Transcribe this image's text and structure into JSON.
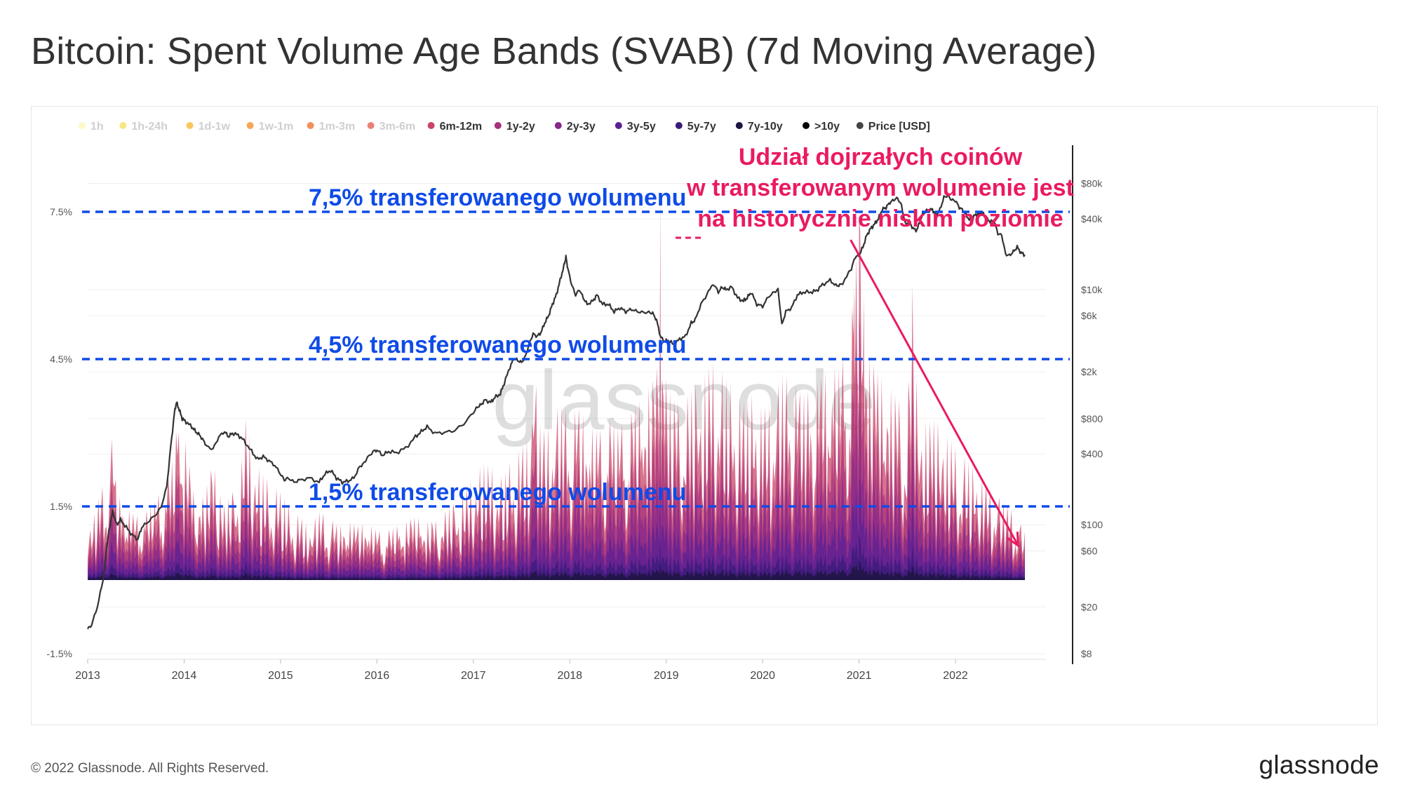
{
  "page": {
    "title": "Bitcoin: Spent Volume Age Bands (SVAB) (7d Moving Average)",
    "copyright": "© 2022 Glassnode. All Rights Reserved.",
    "logo": "glassnode",
    "watermark": "glassnode"
  },
  "colors": {
    "band_1h": "#fef7b6",
    "band_1h_24h": "#f7dc5a",
    "band_1d_1w": "#f9b32a",
    "band_1w_1m": "#f48a1a",
    "band_1m_3m": "#ec6a23",
    "band_3m_6m": "#e0584c",
    "band_6m_12m": "#c94568",
    "band_1y_2y": "#a8327a",
    "band_2y_3y": "#86288a",
    "band_3y_5y": "#5b2094",
    "band_5y_7y": "#3a1a7a",
    "band_7y_10y": "#1d1440",
    "band_10y": "#050505",
    "price": "#333333",
    "annotation_blue": "#0f4be8",
    "annotation_red": "#ea1b60"
  },
  "chart_data": {
    "type": "area",
    "title": "Bitcoin: Spent Volume Age Bands (SVAB) (7d Moving Average)",
    "legend_position": "top-left",
    "grid": true,
    "legend": [
      {
        "label": "1h",
        "color": "#fef7b6",
        "active": false
      },
      {
        "label": "1h-24h",
        "color": "#f7dc5a",
        "active": false
      },
      {
        "label": "1d-1w",
        "color": "#f9b32a",
        "active": false
      },
      {
        "label": "1w-1m",
        "color": "#f48a1a",
        "active": false
      },
      {
        "label": "1m-3m",
        "color": "#ec6a23",
        "active": false
      },
      {
        "label": "3m-6m",
        "color": "#e0584c",
        "active": false
      },
      {
        "label": "6m-12m",
        "color": "#c94568",
        "active": true
      },
      {
        "label": "1y-2y",
        "color": "#a8327a",
        "active": true
      },
      {
        "label": "2y-3y",
        "color": "#86288a",
        "active": true
      },
      {
        "label": "3y-5y",
        "color": "#5b2094",
        "active": true
      },
      {
        "label": "5y-7y",
        "color": "#3a1a7a",
        "active": true
      },
      {
        "label": "7y-10y",
        "color": "#1d1440",
        "active": true
      },
      {
        "label": ">10y",
        "color": "#050505",
        "active": true
      },
      {
        "label": "Price [USD]",
        "color": "#444444",
        "active": true
      }
    ],
    "x_ticks": [
      "2013",
      "2014",
      "2015",
      "2016",
      "2017",
      "2018",
      "2019",
      "2020",
      "2021",
      "2022"
    ],
    "x_range": [
      2013.0,
      2022.72
    ],
    "y_left_ticks": [
      "7.5%",
      "4.5%",
      "1.5%",
      "-1.5%"
    ],
    "y_left_tick_values": [
      7.5,
      4.5,
      1.5,
      -1.5
    ],
    "y_left_range": [
      -1.5,
      8.5
    ],
    "y_right_ticks": [
      "$80k",
      "$40k",
      "$10k",
      "$6k",
      "$2k",
      "$800",
      "$400",
      "$100",
      "$60",
      "$20",
      "$8"
    ],
    "y_right_tick_values": [
      80000,
      40000,
      10000,
      6000,
      2000,
      800,
      400,
      100,
      60,
      20,
      8
    ],
    "y_right_scale": "log",
    "y_right_range": [
      8,
      120000
    ],
    "reference_lines": [
      {
        "value": 7.5,
        "label": "7,5% transferowanego wolumenu"
      },
      {
        "value": 4.5,
        "label": "4,5% transferowanego wolumenu"
      },
      {
        "value": 1.5,
        "label": "1,5% transferowanego wolumenu"
      }
    ],
    "annotation": {
      "lines": [
        "Udział dojrzałych coinów",
        "w transferowanym wolumenie jest",
        "na historycznie niskim poziomie"
      ],
      "arrow_from": [
        2021.0,
        7.9
      ],
      "arrow_to": [
        2022.65,
        0.7
      ]
    },
    "price_series": {
      "name": "Price [USD]",
      "x": [
        2013.0,
        2013.04,
        2013.1,
        2013.16,
        2013.22,
        2013.26,
        2013.3,
        2013.34,
        2013.4,
        2013.46,
        2013.52,
        2013.56,
        2013.62,
        2013.7,
        2013.76,
        2013.82,
        2013.86,
        2013.9,
        2013.92,
        2013.95,
        2013.98,
        2014.02,
        2014.08,
        2014.12,
        2014.16,
        2014.2,
        2014.24,
        2014.3,
        2014.36,
        2014.42,
        2014.46,
        2014.5,
        2014.56,
        2014.62,
        2014.7,
        2014.76,
        2014.82,
        2014.88,
        2014.94,
        2015.0,
        2015.04,
        2015.08,
        2015.14,
        2015.2,
        2015.3,
        2015.4,
        2015.46,
        2015.52,
        2015.58,
        2015.64,
        2015.7,
        2015.76,
        2015.82,
        2015.86,
        2015.9,
        2015.96,
        2016.0,
        2016.06,
        2016.12,
        2016.2,
        2016.3,
        2016.4,
        2016.46,
        2016.52,
        2016.6,
        2016.7,
        2016.8,
        2016.9,
        2017.0,
        2017.04,
        2017.08,
        2017.12,
        2017.18,
        2017.22,
        2017.28,
        2017.32,
        2017.38,
        2017.42,
        2017.46,
        2017.5,
        2017.54,
        2017.58,
        2017.62,
        2017.66,
        2017.7,
        2017.74,
        2017.78,
        2017.82,
        2017.86,
        2017.9,
        2017.94,
        2017.96,
        2017.98,
        2018.02,
        2018.06,
        2018.1,
        2018.14,
        2018.18,
        2018.24,
        2018.28,
        2018.34,
        2018.4,
        2018.46,
        2018.52,
        2018.58,
        2018.64,
        2018.7,
        2018.76,
        2018.82,
        2018.86,
        2018.9,
        2018.94,
        2018.98,
        2019.02,
        2019.08,
        2019.14,
        2019.2,
        2019.26,
        2019.3,
        2019.36,
        2019.42,
        2019.46,
        2019.5,
        2019.54,
        2019.58,
        2019.62,
        2019.68,
        2019.74,
        2019.8,
        2019.84,
        2019.88,
        2019.94,
        2020.0,
        2020.06,
        2020.12,
        2020.16,
        2020.2,
        2020.24,
        2020.3,
        2020.36,
        2020.42,
        2020.5,
        2020.56,
        2020.62,
        2020.7,
        2020.76,
        2020.8,
        2020.84,
        2020.88,
        2020.92,
        2020.96,
        2021.0,
        2021.04,
        2021.08,
        2021.12,
        2021.16,
        2021.2,
        2021.24,
        2021.28,
        2021.32,
        2021.36,
        2021.4,
        2021.44,
        2021.48,
        2021.52,
        2021.56,
        2021.6,
        2021.64,
        2021.68,
        2021.72,
        2021.76,
        2021.8,
        2021.84,
        2021.88,
        2021.92,
        2021.96,
        2022.0,
        2022.04,
        2022.08,
        2022.12,
        2022.16,
        2022.2,
        2022.24,
        2022.28,
        2022.32,
        2022.36,
        2022.4,
        2022.44,
        2022.48,
        2022.52,
        2022.56,
        2022.6,
        2022.64,
        2022.68,
        2022.72
      ],
      "y": [
        13,
        14,
        20,
        34,
        90,
        130,
        100,
        110,
        95,
        82,
        75,
        95,
        105,
        120,
        140,
        210,
        450,
        900,
        1100,
        950,
        800,
        750,
        680,
        620,
        580,
        520,
        460,
        440,
        560,
        620,
        560,
        600,
        580,
        520,
        420,
        360,
        380,
        350,
        320,
        270,
        240,
        250,
        230,
        240,
        250,
        230,
        270,
        290,
        250,
        230,
        235,
        250,
        310,
        330,
        370,
        420,
        430,
        390,
        420,
        410,
        450,
        560,
        620,
        680,
        600,
        610,
        630,
        720,
        900,
        1000,
        1050,
        1150,
        1100,
        1200,
        1300,
        1600,
        2200,
        2600,
        2500,
        2400,
        2700,
        3500,
        4200,
        4000,
        4300,
        5200,
        6000,
        7500,
        9000,
        12000,
        16000,
        19000,
        15000,
        11000,
        9000,
        10000,
        8500,
        7500,
        8000,
        9000,
        7500,
        7500,
        6500,
        7000,
        6500,
        6800,
        6500,
        6400,
        6400,
        6300,
        5500,
        4000,
        3600,
        3700,
        3400,
        3800,
        4000,
        5200,
        5500,
        7500,
        9000,
        10500,
        11000,
        9500,
        10500,
        10000,
        10500,
        8500,
        8000,
        8500,
        9500,
        7500,
        7200,
        8700,
        9500,
        10000,
        5000,
        6500,
        7000,
        9000,
        9500,
        9500,
        9800,
        11000,
        12000,
        10800,
        10900,
        11500,
        13500,
        15000,
        19000,
        19500,
        23000,
        29000,
        33000,
        36000,
        40000,
        48000,
        50000,
        55000,
        58000,
        60000,
        52000,
        36000,
        38000,
        33000,
        32000,
        40000,
        46000,
        47000,
        48000,
        43000,
        48000,
        61000,
        63000,
        58000,
        57000,
        50000,
        47000,
        42000,
        38000,
        43000,
        44000,
        45000,
        40000,
        38000,
        38500,
        30000,
        29000,
        20000,
        19500,
        21000,
        23000,
        20500,
        19800
      ]
    },
    "svab_series": {
      "name": "6m-12m and older bands (stacked share of spent volume, %)",
      "x": [
        2013.0,
        2013.1,
        2013.2,
        2013.26,
        2013.3,
        2013.4,
        2013.5,
        2013.6,
        2013.7,
        2013.8,
        2013.9,
        2013.95,
        2014.0,
        2014.1,
        2014.2,
        2014.3,
        2014.4,
        2014.5,
        2014.6,
        2014.65,
        2014.7,
        2014.8,
        2014.9,
        2015.0,
        2015.1,
        2015.2,
        2015.3,
        2015.4,
        2015.5,
        2015.6,
        2015.7,
        2015.8,
        2015.9,
        2016.0,
        2016.1,
        2016.2,
        2016.3,
        2016.4,
        2016.5,
        2016.6,
        2016.7,
        2016.8,
        2016.9,
        2017.0,
        2017.1,
        2017.2,
        2017.3,
        2017.4,
        2017.5,
        2017.6,
        2017.61,
        2017.7,
        2017.8,
        2017.9,
        2018.0,
        2018.1,
        2018.2,
        2018.3,
        2018.4,
        2018.5,
        2018.6,
        2018.7,
        2018.8,
        2018.9,
        2018.94,
        2019.0,
        2019.1,
        2019.2,
        2019.3,
        2019.4,
        2019.5,
        2019.6,
        2019.7,
        2019.8,
        2019.9,
        2020.0,
        2020.1,
        2020.2,
        2020.3,
        2020.4,
        2020.5,
        2020.6,
        2020.7,
        2020.8,
        2020.9,
        2020.95,
        2021.0,
        2021.05,
        2021.1,
        2021.2,
        2021.3,
        2021.4,
        2021.5,
        2021.57,
        2021.6,
        2021.7,
        2021.8,
        2021.9,
        2022.0,
        2022.1,
        2022.2,
        2022.3,
        2022.4,
        2022.5,
        2022.6,
        2022.72
      ],
      "y": [
        0.5,
        0.8,
        1.2,
        2.5,
        1.1,
        0.9,
        0.7,
        0.8,
        0.9,
        1.0,
        1.5,
        2.4,
        1.6,
        1.0,
        0.9,
        1.2,
        0.8,
        0.9,
        1.4,
        2.0,
        1.3,
        1.1,
        1.0,
        0.9,
        0.7,
        0.6,
        0.5,
        0.7,
        0.6,
        0.5,
        0.6,
        0.5,
        0.6,
        0.5,
        0.5,
        0.6,
        0.6,
        0.7,
        0.6,
        0.6,
        0.7,
        0.8,
        0.9,
        1.1,
        1.3,
        1.2,
        1.1,
        1.3,
        1.4,
        1.6,
        3.6,
        1.6,
        1.7,
        1.9,
        1.8,
        1.9,
        1.7,
        1.6,
        1.8,
        1.7,
        1.8,
        2.0,
        2.2,
        2.4,
        4.2,
        2.3,
        2.0,
        2.1,
        2.3,
        2.4,
        2.6,
        2.4,
        2.2,
        2.0,
        2.1,
        1.9,
        2.0,
        2.4,
        2.3,
        2.1,
        2.2,
        2.3,
        2.5,
        2.4,
        2.8,
        3.4,
        4.2,
        3.2,
        2.6,
        2.3,
        2.2,
        2.0,
        1.9,
        4.5,
        2.0,
        1.7,
        1.8,
        1.6,
        1.4,
        1.3,
        1.2,
        1.0,
        0.9,
        0.8,
        0.7,
        0.5
      ],
      "peak_y": [
        0.8,
        1.6,
        2.2,
        3.0,
        1.8,
        1.5,
        1.3,
        1.4,
        1.6,
        2.0,
        2.6,
        3.9,
        3.0,
        1.8,
        1.7,
        2.4,
        1.5,
        1.8,
        2.5,
        3.5,
        2.6,
        2.2,
        2.0,
        1.8,
        1.5,
        1.3,
        1.1,
        1.4,
        1.3,
        1.1,
        1.2,
        1.1,
        1.2,
        1.0,
        1.0,
        1.1,
        1.2,
        1.3,
        1.2,
        1.2,
        1.4,
        1.6,
        1.8,
        2.1,
        2.4,
        2.3,
        2.1,
        2.5,
        2.7,
        3.0,
        4.8,
        3.0,
        3.2,
        3.6,
        3.4,
        3.5,
        3.2,
        3.0,
        3.3,
        3.1,
        3.3,
        3.6,
        3.9,
        4.2,
        7.9,
        4.0,
        3.6,
        3.7,
        4.0,
        4.2,
        4.5,
        4.2,
        3.9,
        3.6,
        3.8,
        3.5,
        3.6,
        4.2,
        4.1,
        3.8,
        3.9,
        4.1,
        4.4,
        4.3,
        5.0,
        6.0,
        7.5,
        5.8,
        4.6,
        4.2,
        4.0,
        3.7,
        3.5,
        6.8,
        3.6,
        3.2,
        3.3,
        3.0,
        2.7,
        2.5,
        2.3,
        2.0,
        1.8,
        1.6,
        1.4,
        1.0
      ]
    }
  }
}
